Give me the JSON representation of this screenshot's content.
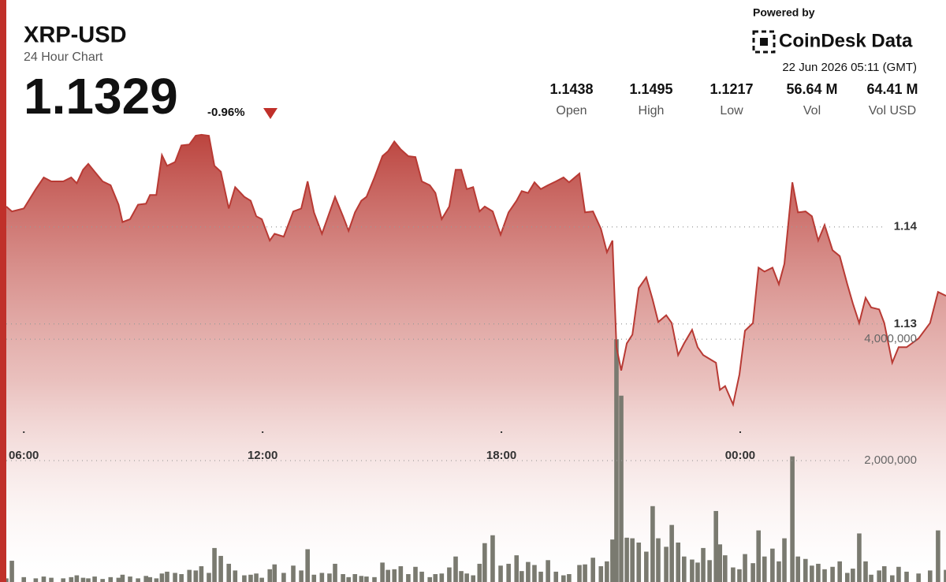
{
  "header": {
    "symbol": "XRP-USD",
    "subtitle": "24 Hour Chart",
    "price": "1.1329",
    "change": "-0.96%",
    "stats": [
      {
        "value": "1.1438",
        "label": "Open"
      },
      {
        "value": "1.1495",
        "label": "High"
      },
      {
        "value": "1.1217",
        "label": "Low"
      },
      {
        "value": "56.64 M",
        "label": "Vol"
      },
      {
        "value": "64.41 M",
        "label": "Vol USD"
      }
    ],
    "powered_by": "Powered by",
    "brand": "CoinDesk Data",
    "timestamp": "22 Jun 2026 05:11 (GMT)"
  },
  "chart_data": {
    "type": "area",
    "x": [
      5.56,
      5.7,
      6.0,
      6.3,
      6.5,
      6.69,
      6.99,
      7.19,
      7.33,
      7.49,
      7.62,
      7.78,
      7.98,
      8.18,
      8.38,
      8.48,
      8.67,
      8.87,
      9.07,
      9.17,
      9.33,
      9.47,
      9.6,
      9.8,
      9.96,
      10.16,
      10.32,
      10.46,
      10.65,
      10.79,
      10.95,
      11.15,
      11.31,
      11.54,
      11.7,
      11.84,
      11.98,
      12.18,
      12.3,
      12.53,
      12.77,
      12.97,
      13.13,
      13.29,
      13.49,
      13.68,
      13.82,
      14.02,
      14.16,
      14.32,
      14.48,
      14.61,
      14.81,
      15.01,
      15.15,
      15.31,
      15.47,
      15.66,
      15.84,
      16.0,
      16.2,
      16.34,
      16.5,
      16.69,
      16.85,
      16.99,
      17.13,
      17.29,
      17.45,
      17.58,
      17.78,
      17.98,
      18.18,
      18.38,
      18.51,
      18.67,
      18.83,
      18.99,
      19.17,
      19.37,
      19.56,
      19.7,
      19.96,
      20.1,
      20.3,
      20.5,
      20.65,
      20.79,
      20.89,
      21.01,
      21.15,
      21.29,
      21.45,
      21.64,
      21.8,
      21.94,
      22.14,
      22.28,
      22.44,
      22.59,
      22.79,
      22.93,
      23.07,
      23.23,
      23.39,
      23.49,
      23.62,
      23.82,
      23.98,
      24.12,
      24.32,
      24.46,
      24.61,
      24.81,
      24.97,
      25.11,
      25.31,
      25.45,
      25.64,
      25.8,
      25.96,
      26.12,
      26.32,
      26.5,
      26.69,
      26.83,
      26.99,
      27.15,
      27.29,
      27.49,
      27.62,
      27.82,
      27.98,
      28.18,
      28.48,
      28.77,
      28.97,
      29.17
    ],
    "series": [
      {
        "name": "Price",
        "type": "area",
        "color": "#b83a34",
        "values": [
          1.1421,
          1.1416,
          1.1419,
          1.1439,
          1.1451,
          1.1447,
          1.1447,
          1.1451,
          1.1445,
          1.1459,
          1.1465,
          1.1457,
          1.1447,
          1.1443,
          1.1423,
          1.1405,
          1.1408,
          1.1423,
          1.1424,
          1.1433,
          1.1433,
          1.1474,
          1.1463,
          1.1467,
          1.1484,
          1.1485,
          1.1494,
          1.1495,
          1.1494,
          1.1463,
          1.1457,
          1.1419,
          1.1441,
          1.1431,
          1.1427,
          1.1411,
          1.1408,
          1.1386,
          1.1393,
          1.139,
          1.1416,
          1.1419,
          1.1447,
          1.1415,
          1.1393,
          1.1415,
          1.1431,
          1.1411,
          1.1396,
          1.1415,
          1.1427,
          1.1431,
          1.1451,
          1.1473,
          1.1478,
          1.1488,
          1.148,
          1.1473,
          1.1472,
          1.1447,
          1.1443,
          1.1435,
          1.1408,
          1.1421,
          1.1459,
          1.1459,
          1.1439,
          1.1441,
          1.1416,
          1.1421,
          1.1416,
          1.1392,
          1.1415,
          1.1427,
          1.1437,
          1.1435,
          1.1446,
          1.1439,
          1.1443,
          1.1447,
          1.1451,
          1.1446,
          1.1455,
          1.1415,
          1.1416,
          1.1398,
          1.1374,
          1.1386,
          1.1276,
          1.1252,
          1.128,
          1.1289,
          1.1337,
          1.1348,
          1.1325,
          1.1302,
          1.1309,
          1.1301,
          1.1268,
          1.128,
          1.1294,
          1.1276,
          1.1268,
          1.1264,
          1.126,
          1.1232,
          1.1236,
          1.1217,
          1.1248,
          1.1293,
          1.1301,
          1.1358,
          1.1354,
          1.1358,
          1.1341,
          1.1362,
          1.1446,
          1.1415,
          1.1416,
          1.1411,
          1.1386,
          1.1402,
          1.1376,
          1.137,
          1.1341,
          1.1321,
          1.1301,
          1.1327,
          1.1317,
          1.1315,
          1.1301,
          1.126,
          1.1276,
          1.1276,
          1.1285,
          1.1301,
          1.1333,
          1.1329
        ]
      },
      {
        "name": "Volume",
        "type": "bar",
        "axis": "y2",
        "color": "#7a7a70",
        "values": [
          60000,
          350000,
          80000,
          60000,
          90000,
          70000,
          60000,
          80000,
          110000,
          70000,
          60000,
          90000,
          50000,
          80000,
          70000,
          120000,
          90000,
          60000,
          100000,
          80000,
          60000,
          140000,
          170000,
          150000,
          130000,
          200000,
          190000,
          260000,
          150000,
          560000,
          430000,
          300000,
          190000,
          110000,
          120000,
          140000,
          70000,
          210000,
          290000,
          150000,
          270000,
          190000,
          540000,
          120000,
          150000,
          140000,
          300000,
          130000,
          80000,
          130000,
          100000,
          90000,
          80000,
          320000,
          200000,
          210000,
          260000,
          130000,
          250000,
          170000,
          80000,
          130000,
          140000,
          240000,
          420000,
          180000,
          140000,
          110000,
          300000,
          640000,
          770000,
          270000,
          300000,
          440000,
          180000,
          330000,
          280000,
          170000,
          360000,
          170000,
          110000,
          130000,
          280000,
          290000,
          400000,
          260000,
          340000,
          700000,
          4000000,
          3070000,
          730000,
          720000,
          650000,
          500000,
          1250000,
          720000,
          580000,
          940000,
          650000,
          420000,
          370000,
          320000,
          560000,
          360000,
          1170000,
          620000,
          440000,
          240000,
          210000,
          460000,
          310000,
          850000,
          420000,
          550000,
          340000,
          720000,
          2070000,
          420000,
          380000,
          270000,
          300000,
          210000,
          250000,
          340000,
          150000,
          220000,
          800000,
          340000,
          120000,
          190000,
          260000,
          110000,
          250000,
          170000,
          140000,
          190000,
          850000,
          200000
        ]
      }
    ],
    "xlim": [
      5.56,
      29.17
    ],
    "xticks": [
      {
        "value": 6,
        "label": "06:00"
      },
      {
        "value": 12,
        "label": "12:00"
      },
      {
        "value": 18,
        "label": "18:00"
      },
      {
        "value": 24,
        "label": "00:00"
      }
    ],
    "ylim": [
      1.1034,
      1.1512
    ],
    "yticks": [
      1.13,
      1.14
    ],
    "y2lim": [
      0,
      7640000
    ],
    "y2ticks": [
      {
        "value": 2000000,
        "label": "2,000,000"
      },
      {
        "value": 4000000,
        "label": "4,000,000"
      }
    ],
    "grid": true
  }
}
